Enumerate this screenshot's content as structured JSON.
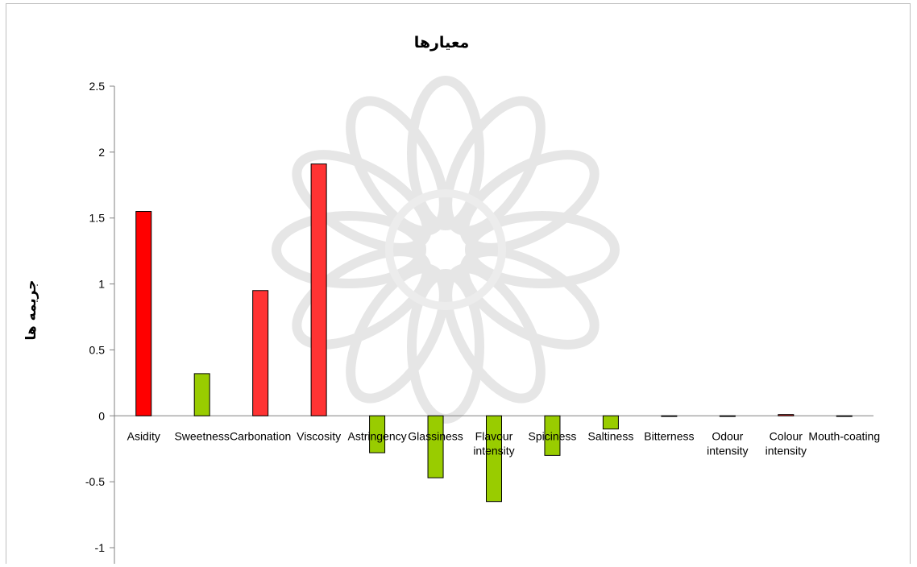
{
  "chart_data": {
    "type": "bar",
    "title": "معیارها",
    "ylabel": "جریمه ها",
    "xlabel": "",
    "ylim": [
      -1,
      2.5
    ],
    "yticks": [
      "2.5",
      "2",
      "1.5",
      "1",
      "0.5",
      "0",
      "-0.5",
      "-1"
    ],
    "grid": false,
    "legend": "none",
    "categories": [
      "Asidity",
      "Sweetness",
      "Carbonation",
      "Viscosity",
      "Astringency",
      "Glassiness",
      "Flavour intensity",
      "Spiciness",
      "Saltiness",
      "Bitterness",
      "Odour intensity",
      "Colour intensity",
      "Mouth-coating"
    ],
    "values": [
      1.55,
      0.32,
      0.95,
      1.91,
      -0.28,
      -0.47,
      -0.65,
      -0.3,
      -0.1,
      0,
      0,
      0.01,
      0
    ],
    "colors": [
      "#ff0000",
      "#99cc00",
      "#ff3333",
      "#ff3333",
      "#99cc00",
      "#99cc00",
      "#99cc00",
      "#99cc00",
      "#99cc00",
      "#99cc00",
      "#99cc00",
      "#ff3333",
      "#99cc00"
    ]
  }
}
